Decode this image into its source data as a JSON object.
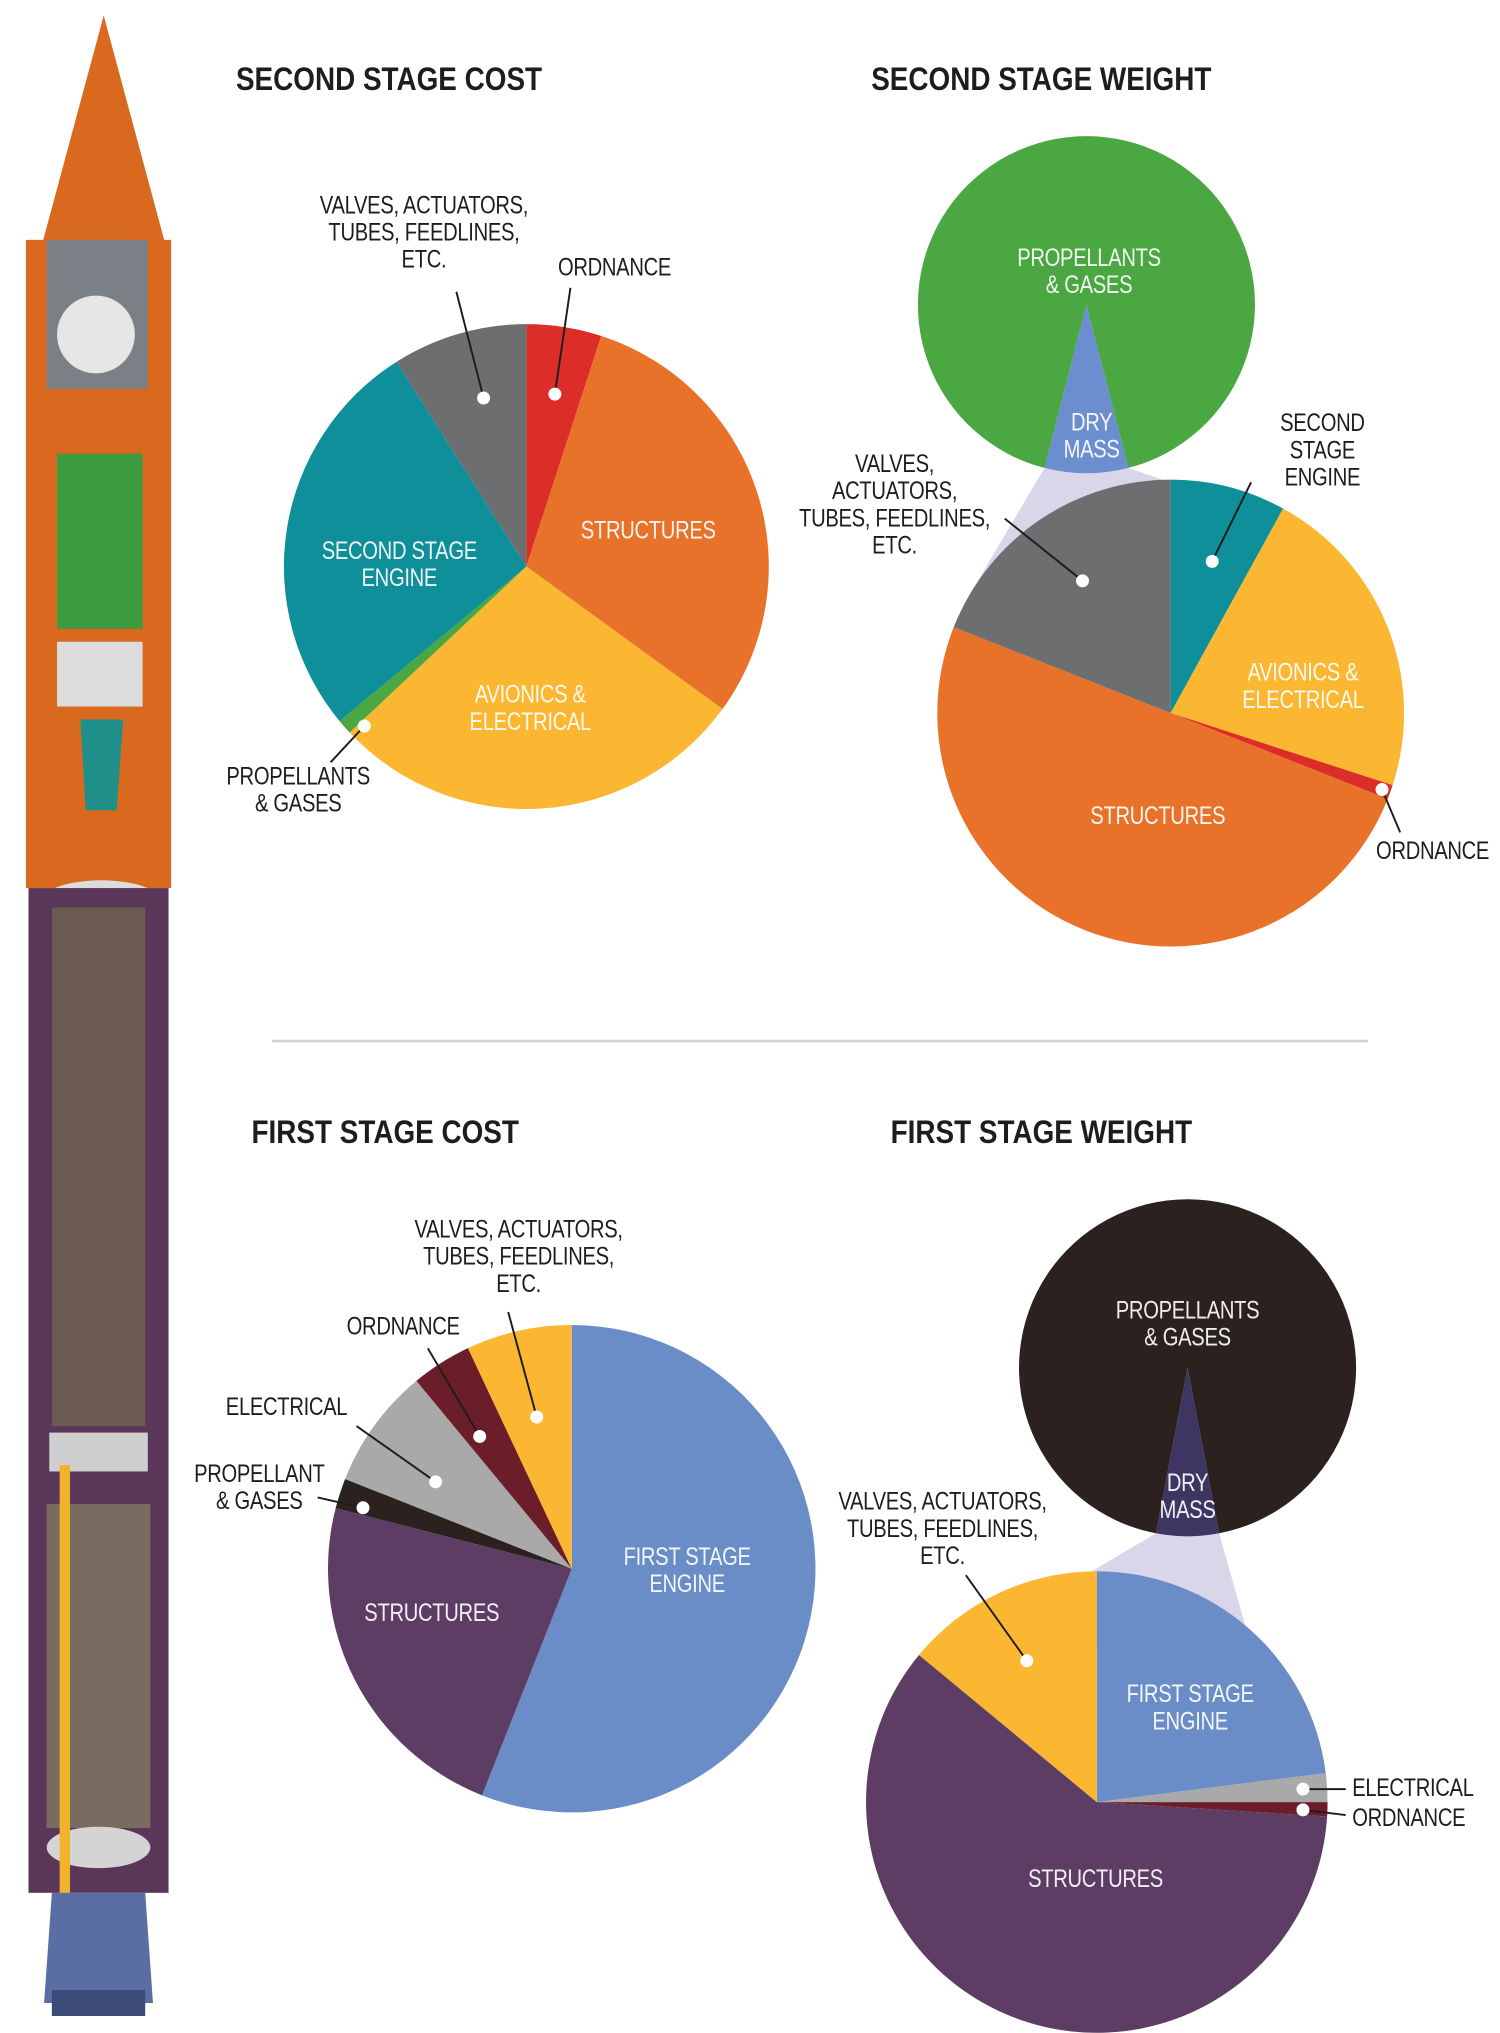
{
  "chart_data": [
    {
      "type": "pie",
      "title": "SECOND STAGE COST",
      "categories": [
        "ORDNANCE",
        "STRUCTURES",
        "AVIONICS &\nELECTRICAL",
        "PROPELLANTS\n& GASES",
        "SECOND STAGE\nENGINE",
        "VALVES, ACTUATORS,\nTUBES, FEEDLINES,\nETC."
      ],
      "values": [
        5,
        30,
        28,
        1,
        27,
        9
      ],
      "colors": [
        "#dc2e28",
        "#e8722a",
        "#fbb731",
        "#4aa742",
        "#0e8f9a",
        "#6d6e70"
      ]
    },
    {
      "type": "pie-of-pie",
      "title": "SECOND STAGE WEIGHT",
      "categories": [
        "PROPELLANTS\n& GASES",
        "DRY\nMASS"
      ],
      "values": [
        92,
        8
      ],
      "colors": [
        "#4aa742",
        "#6b8fce"
      ],
      "breakdown": {
        "categories": [
          "SECOND STAGE\nENGINE",
          "AVIONICS &\nELECTRICAL",
          "ORDNANCE",
          "STRUCTURES",
          "VALVES,\nACTUATORS,\nTUBES, FEEDLINES,\nETC."
        ],
        "values": [
          8,
          22,
          1,
          50,
          19
        ],
        "colors": [
          "#0e8f9a",
          "#fbb731",
          "#dc2e28",
          "#e8722a",
          "#6d6e70"
        ]
      }
    },
    {
      "type": "pie",
      "title": "FIRST STAGE COST",
      "categories": [
        "FIRST STAGE\nENGINE",
        "STRUCTURES",
        "PROPELLANT\n& GASES",
        "ELECTRICAL",
        "ORDNANCE",
        "VALVES, ACTUATORS,\nTUBES, FEEDLINES,\nETC."
      ],
      "values": [
        56,
        23,
        2,
        8,
        4,
        7
      ],
      "colors": [
        "#6a8cc7",
        "#5e3d64",
        "#2b2220",
        "#a9a9a9",
        "#6b1e2a",
        "#fbb731"
      ]
    },
    {
      "type": "pie-of-pie",
      "title": "FIRST STAGE WEIGHT",
      "categories": [
        "PROPELLANTS\n& GASES",
        "DRY\nMASS"
      ],
      "values": [
        94,
        6
      ],
      "colors": [
        "#2b2220",
        "#3f3563"
      ],
      "breakdown": {
        "categories": [
          "FIRST STAGE\nENGINE",
          "ELECTRICAL",
          "ORDNANCE",
          "STRUCTURES",
          "VALVES, ACTUATORS,\nTUBES, FEEDLINES,\nETC."
        ],
        "values": [
          23,
          2,
          1,
          60,
          14
        ],
        "colors": [
          "#6a8cc7",
          "#a9a9a9",
          "#6b1e2a",
          "#5e3d64",
          "#fbb731"
        ]
      }
    }
  ]
}
